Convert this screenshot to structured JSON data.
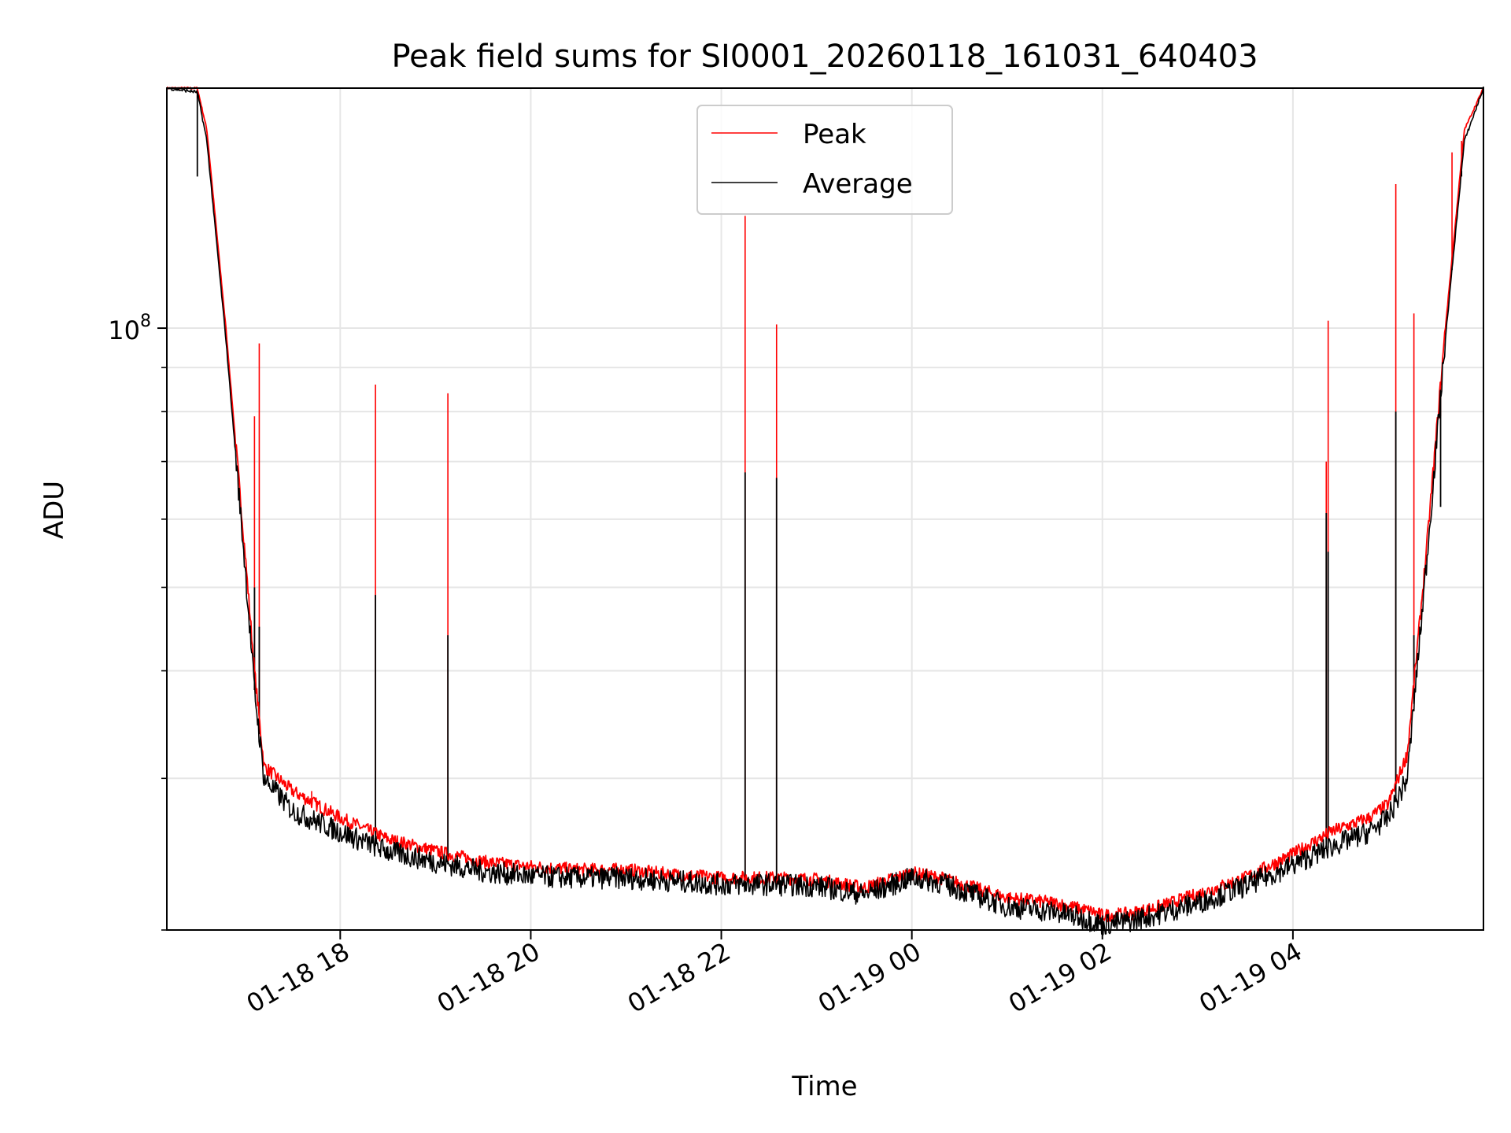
{
  "chart_data": {
    "type": "line",
    "title": "Peak field sums for SI0001_20260118_161031_640403",
    "xlabel": "Time",
    "ylabel": "ADU",
    "yscale": "log",
    "ylim": [
      20000000,
      190000000
    ],
    "xlim": [
      16.18,
      30.0
    ],
    "grid": true,
    "legend_position": "top-center",
    "y_major_tick": {
      "value": 100000000,
      "label_base": "10",
      "label_exp": "8"
    },
    "y_minor_ticks": [
      20000000,
      30000000,
      40000000,
      50000000,
      60000000,
      70000000,
      80000000,
      90000000
    ],
    "x_ticks": [
      {
        "value": 18,
        "label": "01-18 18"
      },
      {
        "value": 20,
        "label": "01-18 20"
      },
      {
        "value": 22,
        "label": "01-18 22"
      },
      {
        "value": 24,
        "label": "01-19 00"
      },
      {
        "value": 26,
        "label": "01-19 02"
      },
      {
        "value": 28,
        "label": "01-19 04"
      }
    ],
    "series": [
      {
        "name": "Peak",
        "color": "#ff0000",
        "x": [
          16.18,
          16.5,
          16.6,
          16.8,
          17.0,
          17.1,
          17.2,
          17.5,
          18.0,
          18.5,
          19.0,
          19.5,
          20.0,
          20.5,
          21.0,
          21.5,
          22.0,
          22.5,
          23.0,
          23.5,
          24.0,
          24.3,
          24.6,
          25.0,
          25.5,
          25.9,
          26.0,
          26.3,
          26.6,
          27.0,
          27.5,
          28.0,
          28.4,
          28.8,
          29.0,
          29.2,
          29.4,
          29.6,
          29.8,
          30.0
        ],
        "values": [
          190000000,
          190000000,
          170000000,
          100000000,
          55000000,
          40000000,
          31000000,
          29000000,
          27000000,
          25500000,
          24700000,
          24000000,
          23700000,
          23500000,
          23500000,
          23200000,
          23000000,
          23000000,
          22900000,
          22400000,
          23300000,
          23000000,
          22500000,
          21800000,
          21500000,
          21000000,
          20800000,
          20900000,
          21300000,
          22000000,
          23000000,
          24500000,
          26000000,
          27000000,
          28000000,
          32000000,
          55000000,
          100000000,
          170000000,
          190000000
        ],
        "spikes": [
          {
            "x": 16.5,
            "peak": 185000000,
            "avg": 150000000
          },
          {
            "x": 17.1,
            "peak": 79000000,
            "avg": 50000000
          },
          {
            "x": 17.15,
            "peak": 96000000,
            "avg": 45000000
          },
          {
            "x": 17.7,
            "peak": 29000000,
            "avg": 27000000
          },
          {
            "x": 18.37,
            "peak": 86000000,
            "avg": 49000000
          },
          {
            "x": 19.13,
            "peak": 84000000,
            "avg": 44000000
          },
          {
            "x": 22.25,
            "peak": 135000000,
            "avg": 68000000
          },
          {
            "x": 22.58,
            "peak": 101000000,
            "avg": 67000000
          },
          {
            "x": 28.35,
            "peak": 70000000,
            "avg": 61000000
          },
          {
            "x": 28.37,
            "peak": 102000000,
            "avg": 55000000
          },
          {
            "x": 29.08,
            "peak": 147000000,
            "avg": 80000000
          },
          {
            "x": 29.27,
            "peak": 104000000,
            "avg": 44000000
          },
          {
            "x": 29.55,
            "peak": 79000000,
            "avg": 62000000
          },
          {
            "x": 29.67,
            "peak": 160000000,
            "avg": 120000000
          },
          {
            "x": 29.77,
            "peak": 165000000,
            "avg": 150000000
          }
        ]
      },
      {
        "name": "Average",
        "color": "#000000",
        "x": [
          16.18,
          16.5,
          16.6,
          16.8,
          17.0,
          17.1,
          17.2,
          17.5,
          18.0,
          18.5,
          19.0,
          19.5,
          20.0,
          20.5,
          21.0,
          21.5,
          22.0,
          22.5,
          23.0,
          23.5,
          24.0,
          24.3,
          24.6,
          25.0,
          25.5,
          25.9,
          26.0,
          26.3,
          26.6,
          27.0,
          27.5,
          28.0,
          28.4,
          28.8,
          29.0,
          29.2,
          29.4,
          29.6,
          29.8,
          30.0
        ],
        "values": [
          190000000,
          188000000,
          165000000,
          97000000,
          53000000,
          38000000,
          30000000,
          27500000,
          26000000,
          24700000,
          24000000,
          23400000,
          23100000,
          23000000,
          23000000,
          22800000,
          22600000,
          22600000,
          22500000,
          22000000,
          23000000,
          22700000,
          22100000,
          21300000,
          21000000,
          20500000,
          20300000,
          20500000,
          20900000,
          21500000,
          22500000,
          23800000,
          25000000,
          26000000,
          27000000,
          30000000,
          53000000,
          97000000,
          165000000,
          190000000
        ]
      }
    ]
  }
}
